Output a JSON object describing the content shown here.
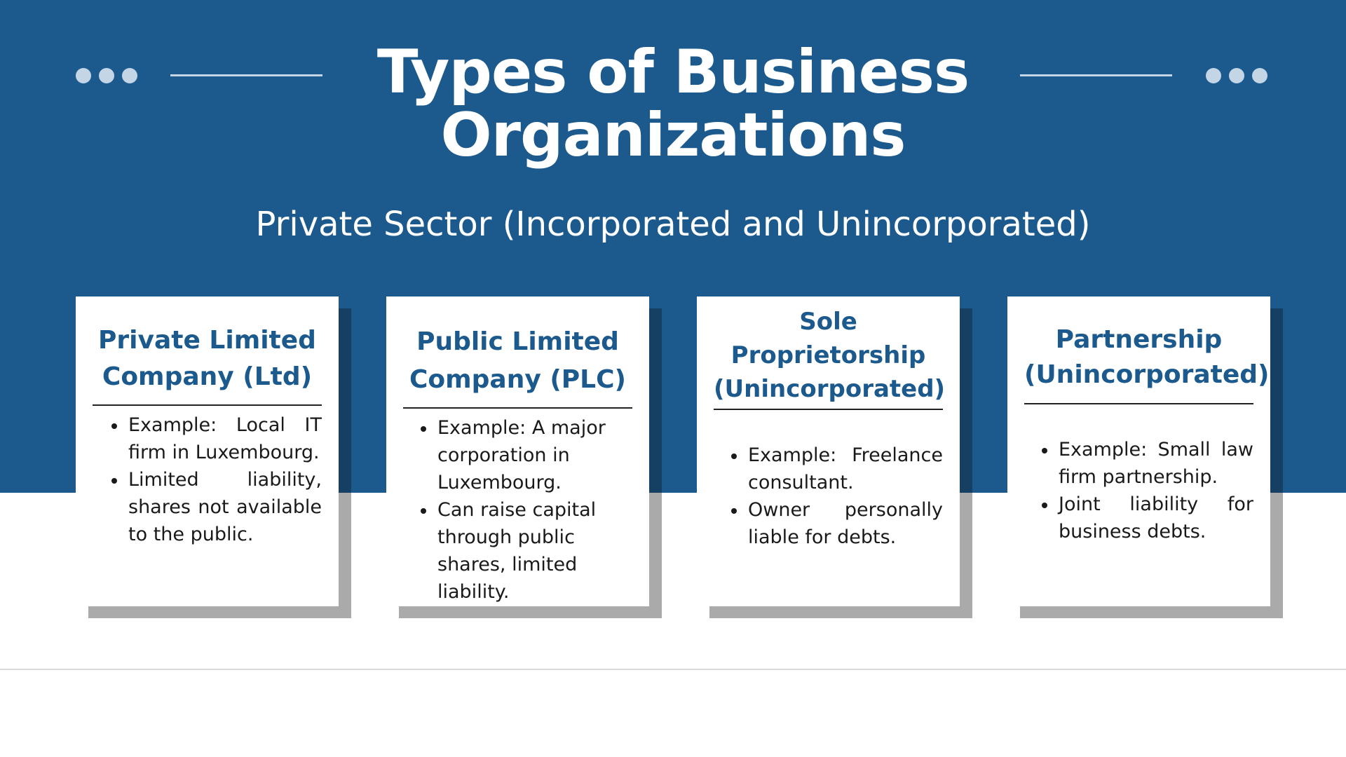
{
  "header": {
    "title_line1": "Types of Business",
    "title_line2": "Organizations",
    "subtitle": "Private Sector (Incorporated and Unincorporated)"
  },
  "colors": {
    "primary_blue": "#1c5a8e",
    "dark_blue_shadow": "#163f64",
    "gray_shadow": "#aaaaaa",
    "dot_color": "#c4d5e6"
  },
  "cards": [
    {
      "title": "Private Limited\nCompany (Ltd)",
      "points": [
        "Example: Local IT firm in Luxembourg.",
        "Limited liability, shares not available to the public."
      ]
    },
    {
      "title": "Public Limited\nCompany (PLC)",
      "points": [
        "Example: A major corporation in Luxembourg.",
        "Can raise capital through public shares, limited liability."
      ]
    },
    {
      "title": "Sole\nProprietorship\n(Unincorporated)",
      "points": [
        "Example: Freelance consultant.",
        "Owner personally liable for debts."
      ]
    },
    {
      "title": "Partnership\n(Unincorporated)",
      "points": [
        "Example: Small law firm partnership.",
        "Joint liability for business debts."
      ]
    }
  ]
}
